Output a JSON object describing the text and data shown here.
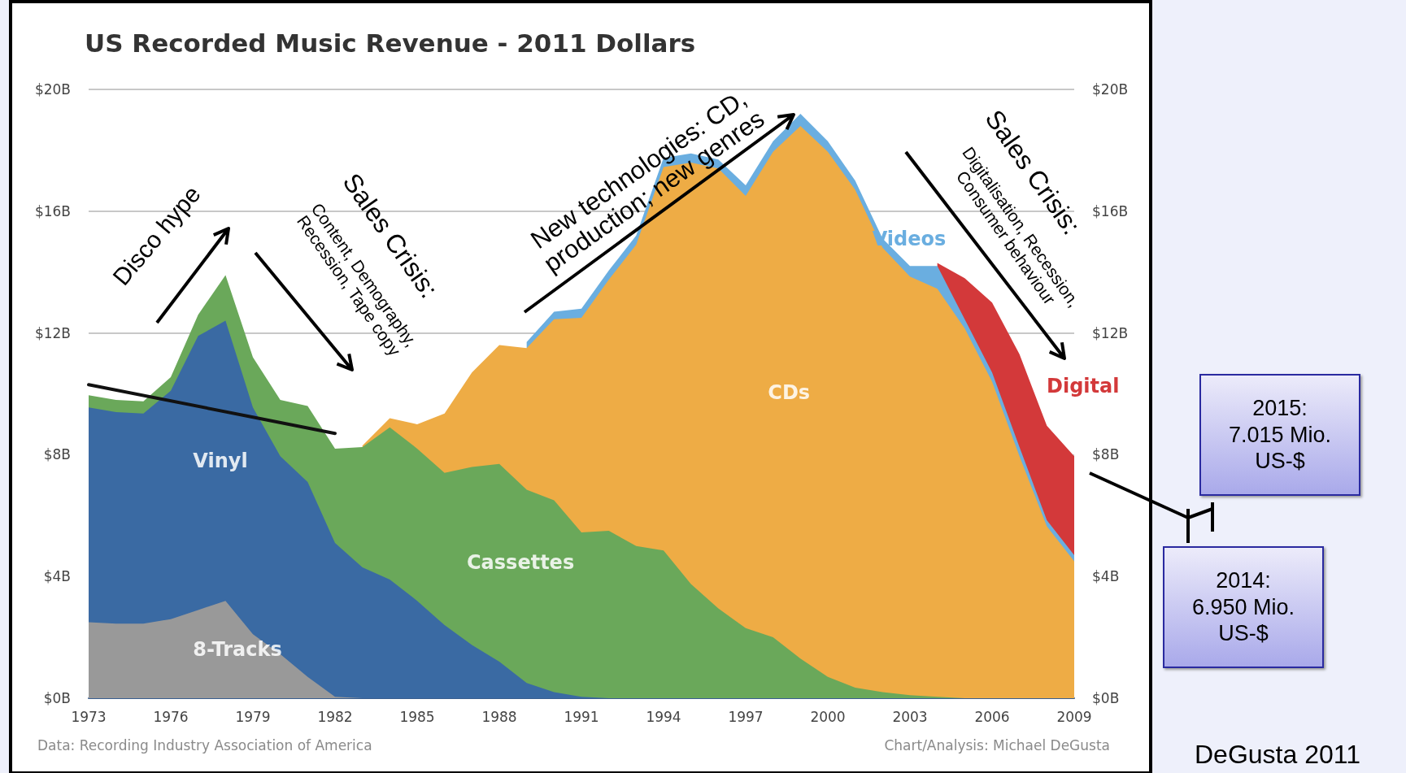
{
  "chart_data": {
    "type": "area",
    "title": "US Recorded Music Revenue - 2011 Dollars",
    "stacked": true,
    "legend": false,
    "grid": "y",
    "marker": "none",
    "x": [
      1973,
      1974,
      1975,
      1976,
      1977,
      1978,
      1979,
      1980,
      1981,
      1982,
      1983,
      1984,
      1985,
      1986,
      1987,
      1988,
      1989,
      1990,
      1991,
      1992,
      1993,
      1994,
      1995,
      1996,
      1997,
      1998,
      1999,
      2000,
      2001,
      2002,
      2003,
      2004,
      2005,
      2006,
      2007,
      2008,
      2009
    ],
    "xlim": [
      1973,
      2009
    ],
    "xticks": [
      1973,
      1976,
      1979,
      1982,
      1985,
      1988,
      1991,
      1994,
      1997,
      2000,
      2003,
      2006,
      2009
    ],
    "ylim": [
      0,
      20
    ],
    "yticks": [
      {
        "value": 0,
        "label": "$0B"
      },
      {
        "value": 4,
        "label": "$4B"
      },
      {
        "value": 8,
        "label": "$8B"
      },
      {
        "value": 12,
        "label": "$12B"
      },
      {
        "value": 16,
        "label": "$16B"
      },
      {
        "value": 20,
        "label": "$20B"
      }
    ],
    "y2lim": [
      0,
      20
    ],
    "y2ticks": [
      {
        "value": 0,
        "label": "$0B"
      },
      {
        "value": 4,
        "label": "$4B"
      },
      {
        "value": 8,
        "label": "$8B"
      },
      {
        "value": 12,
        "label": "$12B"
      },
      {
        "value": 16,
        "label": "$16B"
      },
      {
        "value": 20,
        "label": "$20B"
      }
    ],
    "series": [
      {
        "name": "8-Tracks",
        "color": "#999999",
        "values": [
          2.5,
          2.45,
          2.45,
          2.6,
          2.9,
          3.2,
          2.1,
          1.45,
          0.7,
          0.05,
          0,
          0,
          0,
          0,
          0,
          0,
          0,
          0,
          0,
          0,
          0,
          0,
          0,
          0,
          0,
          0,
          0,
          0,
          0,
          0,
          0,
          0,
          0,
          0,
          0,
          0,
          0
        ]
      },
      {
        "name": "Vinyl",
        "color": "#3a6aa3",
        "values": [
          7.05,
          6.95,
          6.9,
          7.5,
          9.0,
          9.2,
          7.45,
          6.5,
          6.4,
          5.05,
          4.3,
          3.9,
          3.2,
          2.4,
          1.75,
          1.2,
          0.5,
          0.2,
          0.05,
          0,
          0,
          0,
          0,
          0,
          0,
          0,
          0,
          0,
          0,
          0,
          0,
          0,
          0,
          0,
          0,
          0,
          0
        ]
      },
      {
        "name": "Cassettes",
        "color": "#6aa85a",
        "values": [
          0.4,
          0.4,
          0.4,
          0.45,
          0.7,
          1.5,
          1.65,
          1.85,
          2.5,
          3.1,
          3.95,
          5.0,
          5.0,
          5.0,
          5.85,
          6.5,
          6.35,
          6.3,
          5.4,
          5.5,
          5.0,
          4.85,
          3.75,
          2.95,
          2.3,
          2.0,
          1.3,
          0.7,
          0.35,
          0.2,
          0.1,
          0.05,
          0,
          0,
          0,
          0,
          0
        ]
      },
      {
        "name": "CDs",
        "color": "#eeac45",
        "values": [
          null,
          null,
          null,
          null,
          null,
          null,
          null,
          null,
          null,
          null,
          0.05,
          0.3,
          0.8,
          1.95,
          3.1,
          3.9,
          4.65,
          5.95,
          7.05,
          8.25,
          9.9,
          12.6,
          13.85,
          14.45,
          14.2,
          15.95,
          17.5,
          17.25,
          16.35,
          14.6,
          13.75,
          13.4,
          12.15,
          10.4,
          7.95,
          5.65,
          4.5
        ]
      },
      {
        "name": "Videos",
        "color": "#6aaee0",
        "values": [
          null,
          null,
          null,
          null,
          null,
          null,
          null,
          null,
          null,
          null,
          null,
          null,
          null,
          null,
          null,
          null,
          0.2,
          0.25,
          0.3,
          0.3,
          0.3,
          0.3,
          0.3,
          0.3,
          0.35,
          0.35,
          0.4,
          0.35,
          0.3,
          0.3,
          0.35,
          0.75,
          0.3,
          0.3,
          0.3,
          0.2,
          0.2
        ]
      },
      {
        "name": "Digital",
        "color": "#d3393a",
        "values": [
          null,
          null,
          null,
          null,
          null,
          null,
          null,
          null,
          null,
          null,
          null,
          null,
          null,
          null,
          null,
          null,
          null,
          null,
          null,
          null,
          null,
          null,
          null,
          null,
          null,
          null,
          null,
          null,
          null,
          null,
          null,
          0.1,
          1.35,
          2.3,
          3.05,
          3.1,
          3.25
        ]
      },
      {
        "type": "line",
        "color": "#111111",
        "x": [
          1973,
          1982
        ],
        "values": [
          10.3,
          8.7
        ]
      }
    ],
    "annotations": [
      "Data: Recording Industry Association of America",
      "Chart/Analysis: Michael DeGusta",
      "Disco hype",
      "Sales Crisis:",
      "Content, Demography,\nRecession, Tape copy",
      "New technologies: CD,\nproduction; new genres",
      "Sales Crisis:",
      "Digitalisation, Recession,\nConsumer behaviour",
      "2015:\n7.015 Mio.\nUS-$",
      "2014:\n6.950 Mio.\nUS-$",
      "DeGusta 2011"
    ]
  }
}
